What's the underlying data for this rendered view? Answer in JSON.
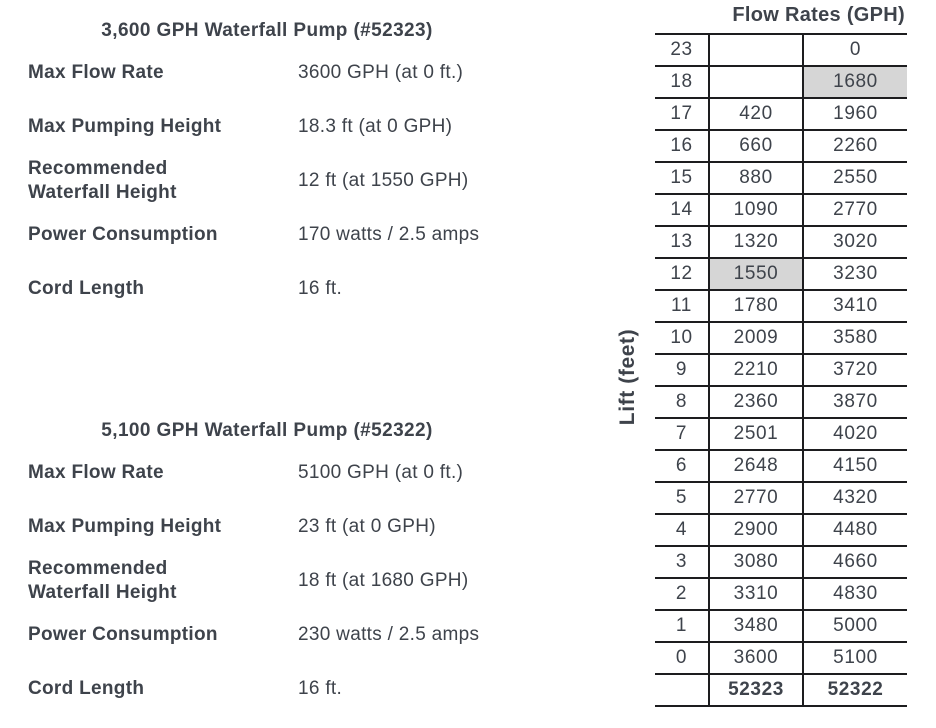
{
  "colors": {
    "text": "#3e434b",
    "table_border": "#1d1d1f",
    "highlight_cell": "#d6d6d6",
    "background": "#ffffff"
  },
  "pumps": [
    {
      "title": "3,600 GPH Waterfall Pump (#52323)",
      "specs": [
        {
          "label": "Max Flow Rate",
          "value": "3600 GPH (at 0 ft.)"
        },
        {
          "label": "Max Pumping Height",
          "value": "18.3 ft (at 0 GPH)"
        },
        {
          "label": "Recommended\nWaterfall Height",
          "value": "12 ft (at 1550 GPH)"
        },
        {
          "label": "Power Consumption",
          "value": "170 watts / 2.5 amps"
        },
        {
          "label": "Cord Length",
          "value": "16 ft."
        }
      ]
    },
    {
      "title": "5,100 GPH Waterfall Pump (#52322)",
      "specs": [
        {
          "label": "Max Flow Rate",
          "value": "5100 GPH (at 0 ft.)"
        },
        {
          "label": "Max Pumping Height",
          "value": "23 ft (at 0 GPH)"
        },
        {
          "label": "Recommended\nWaterfall Height",
          "value": "18 ft (at 1680 GPH)"
        },
        {
          "label": "Power Consumption",
          "value": "230 watts / 2.5 amps"
        },
        {
          "label": "Cord Length",
          "value": "16 ft."
        }
      ]
    }
  ],
  "flow_table": {
    "title": "Flow Rates (GPH)",
    "axis_label": "Lift (feet)",
    "rows": [
      {
        "lift": "23",
        "p52323": "",
        "p52322": "0"
      },
      {
        "lift": "18",
        "p52323": "",
        "p52322": "1680",
        "highlight": "p52322"
      },
      {
        "lift": "17",
        "p52323": "420",
        "p52322": "1960"
      },
      {
        "lift": "16",
        "p52323": "660",
        "p52322": "2260"
      },
      {
        "lift": "15",
        "p52323": "880",
        "p52322": "2550"
      },
      {
        "lift": "14",
        "p52323": "1090",
        "p52322": "2770"
      },
      {
        "lift": "13",
        "p52323": "1320",
        "p52322": "3020"
      },
      {
        "lift": "12",
        "p52323": "1550",
        "p52322": "3230",
        "highlight": "p52323"
      },
      {
        "lift": "11",
        "p52323": "1780",
        "p52322": "3410"
      },
      {
        "lift": "10",
        "p52323": "2009",
        "p52322": "3580"
      },
      {
        "lift": "9",
        "p52323": "2210",
        "p52322": "3720"
      },
      {
        "lift": "8",
        "p52323": "2360",
        "p52322": "3870"
      },
      {
        "lift": "7",
        "p52323": "2501",
        "p52322": "4020"
      },
      {
        "lift": "6",
        "p52323": "2648",
        "p52322": "4150"
      },
      {
        "lift": "5",
        "p52323": "2770",
        "p52322": "4320"
      },
      {
        "lift": "4",
        "p52323": "2900",
        "p52322": "4480"
      },
      {
        "lift": "3",
        "p52323": "3080",
        "p52322": "4660"
      },
      {
        "lift": "2",
        "p52323": "3310",
        "p52322": "4830"
      },
      {
        "lift": "1",
        "p52323": "3480",
        "p52322": "5000"
      },
      {
        "lift": "0",
        "p52323": "3600",
        "p52322": "5100"
      }
    ],
    "footer": {
      "lift": "",
      "p52323": "52323",
      "p52322": "52322"
    }
  }
}
